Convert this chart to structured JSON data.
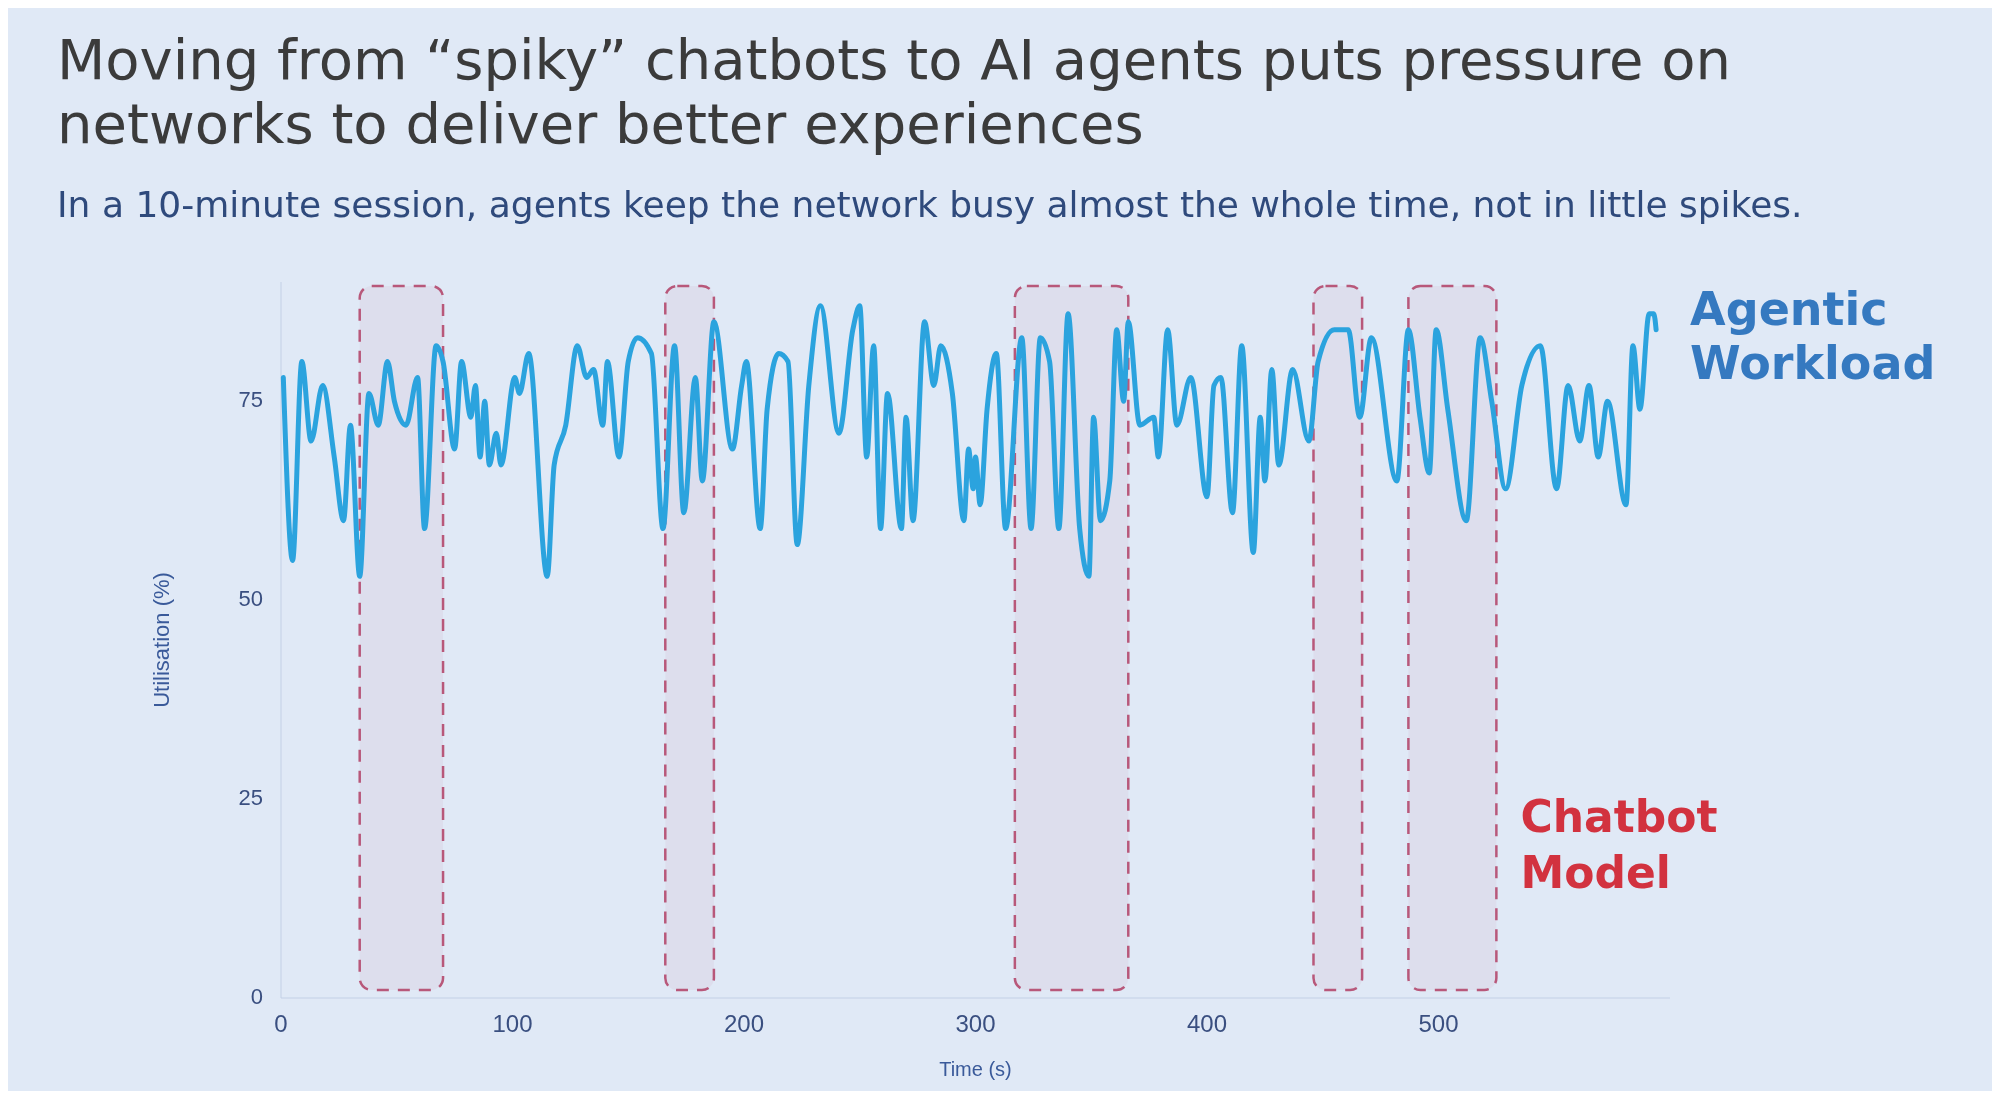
{
  "chart_data": {
    "type": "line",
    "title": "Moving from “spiky” chatbots to AI agents puts pressure on networks to deliver better experiences",
    "subtitle": "In a 10-minute session, agents keep the network busy almost the whole time, not in little spikes.",
    "xlabel": "Time (s)",
    "ylabel": "Utilisation (%)",
    "x": [
      1,
      5,
      9,
      13,
      18,
      23,
      27,
      30,
      34,
      38,
      42,
      46,
      49,
      54,
      59,
      62,
      67,
      70,
      75,
      78,
      82,
      84,
      86,
      88,
      90,
      93,
      95,
      101,
      103,
      107,
      115,
      118,
      123,
      128,
      132,
      135,
      139,
      141,
      146,
      150,
      154,
      160,
      165,
      170,
      174,
      179,
      182,
      187,
      195,
      199,
      201,
      207,
      210,
      215,
      219,
      223,
      228,
      233,
      241,
      247,
      250,
      253,
      256,
      259,
      262,
      268,
      270,
      273,
      278,
      282,
      285,
      290,
      295,
      297,
      299,
      300,
      302,
      305,
      309,
      313,
      320,
      324,
      328,
      332,
      336,
      340,
      345,
      349,
      351,
      354,
      358,
      361,
      364,
      366,
      371,
      377,
      379,
      383,
      387,
      393,
      400,
      403,
      406,
      411,
      415,
      420,
      423,
      425,
      428,
      431,
      437,
      444,
      448,
      455,
      461,
      466,
      471,
      482,
      487,
      492,
      496,
      499,
      504,
      512,
      518,
      523,
      529,
      536,
      544,
      551,
      556,
      561,
      565,
      569,
      573,
      581,
      584,
      587,
      591,
      593,
      594
    ],
    "series": [
      {
        "name": "Agentic Workload",
        "color": "#2ba3de",
        "values": [
          78,
          55,
          80,
          70,
          77,
          68,
          60,
          72,
          53,
          76,
          72,
          80,
          75,
          72,
          78,
          59,
          82,
          80,
          69,
          80,
          73,
          77,
          68,
          75,
          67,
          71,
          67,
          78,
          76,
          81,
          53,
          67,
          72,
          82,
          78,
          79,
          72,
          80,
          68,
          80,
          83,
          81,
          59,
          82,
          61,
          78,
          65,
          85,
          69,
          77,
          80,
          59,
          74,
          81,
          80,
          57,
          77,
          87,
          71,
          84,
          87,
          68,
          82,
          59,
          76,
          59,
          73,
          60,
          85,
          77,
          82,
          76,
          60,
          69,
          64,
          68,
          62,
          74,
          81,
          59,
          83,
          59,
          83,
          80,
          59,
          86,
          59,
          53,
          73,
          60,
          65,
          84,
          75,
          85,
          72,
          73,
          68,
          84,
          72,
          78,
          63,
          77,
          78,
          61,
          82,
          56,
          73,
          65,
          79,
          67,
          79,
          70,
          80,
          84,
          84,
          73,
          83,
          65,
          84,
          73,
          66,
          84,
          74,
          60,
          83,
          75,
          64,
          77,
          82,
          64,
          77,
          70,
          77,
          68,
          75,
          62,
          82,
          74,
          86,
          86,
          84
        ]
      }
    ],
    "xlim": [
      0,
      600
    ],
    "xticks": [
      0,
      100,
      200,
      300,
      400,
      500
    ],
    "ylim": [
      0,
      90
    ],
    "yticks": [
      0,
      25,
      50,
      75
    ],
    "bands": [
      {
        "axis": "x",
        "from": 34,
        "to": 70,
        "color": "#b8587a"
      },
      {
        "axis": "x",
        "from": 166,
        "to": 187,
        "color": "#b8587a"
      },
      {
        "axis": "x",
        "from": 317,
        "to": 366,
        "color": "#b8587a"
      },
      {
        "axis": "x",
        "from": 446,
        "to": 467,
        "color": "#b8587a"
      },
      {
        "axis": "x",
        "from": 487,
        "to": 525,
        "label": "Chatbot Model",
        "color": "#b8587a"
      }
    ]
  }
}
